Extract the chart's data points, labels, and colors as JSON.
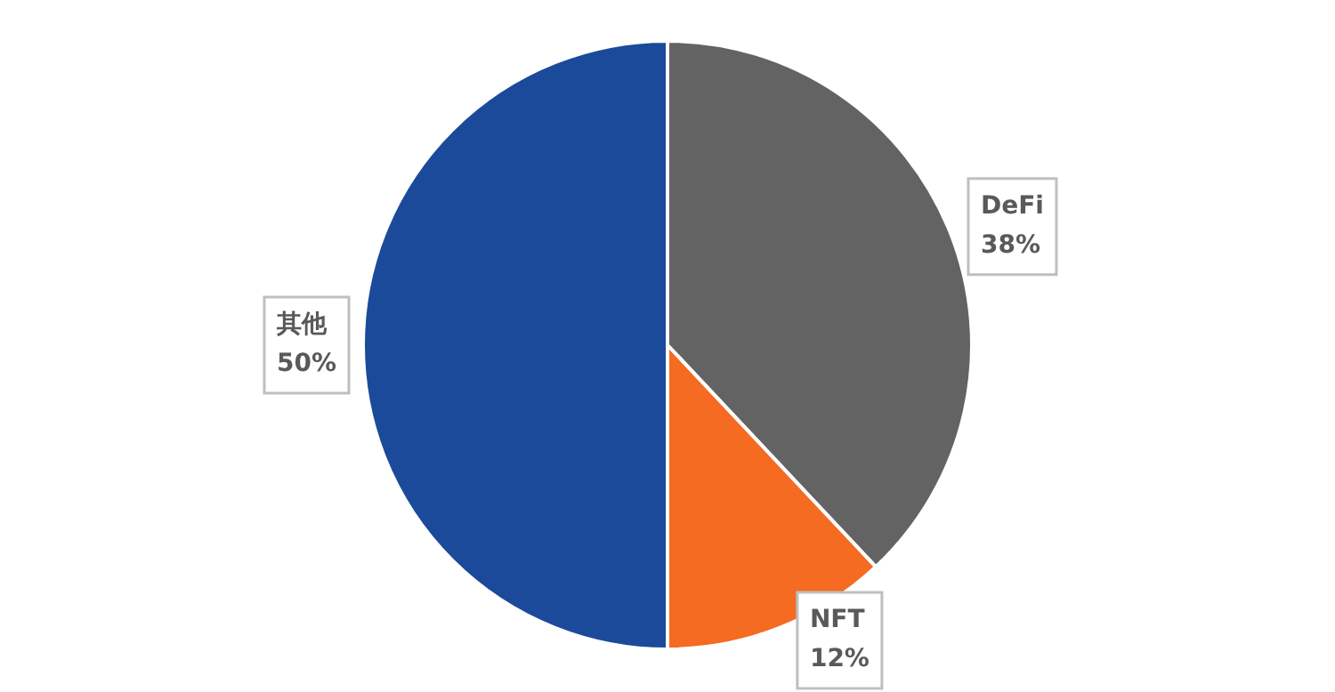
{
  "chart_data": {
    "type": "pie",
    "categories": [
      "DeFi",
      "NFT",
      "其他"
    ],
    "values": [
      38,
      12,
      50
    ],
    "colors": [
      "#636363",
      "#f46b21",
      "#1b4a9a"
    ],
    "value_labels": [
      "38%",
      "12%",
      "50%"
    ],
    "legend": false
  }
}
